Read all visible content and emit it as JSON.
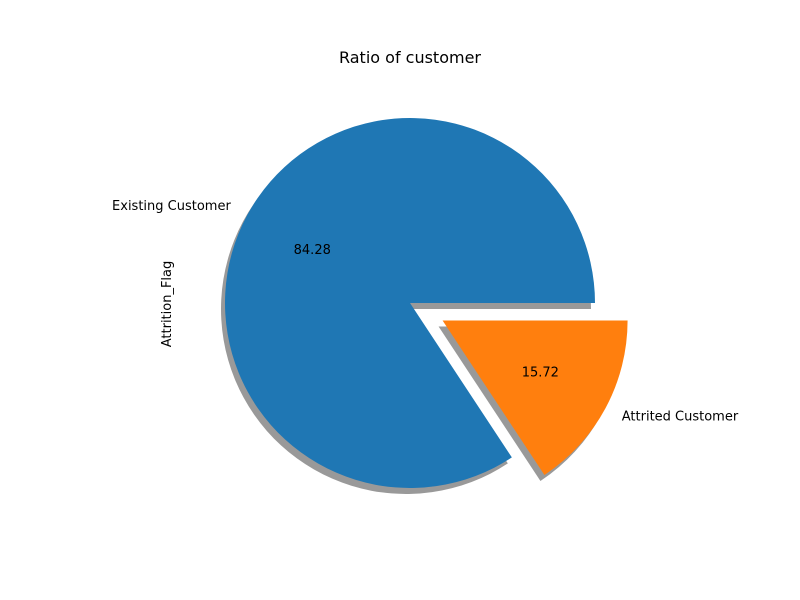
{
  "chart_data": {
    "type": "pie",
    "title": "Ratio of customer",
    "ylabel": "Attrition_Flag",
    "shadow": true,
    "slices": [
      {
        "label": "Existing Customer",
        "value": 84.28,
        "pct_label": "84.28",
        "color": "#1f77b4",
        "explode": 0
      },
      {
        "label": "Attrited Customer",
        "value": 15.72,
        "pct_label": "15.72",
        "color": "#ff7f0e",
        "explode": 0.2
      }
    ]
  }
}
